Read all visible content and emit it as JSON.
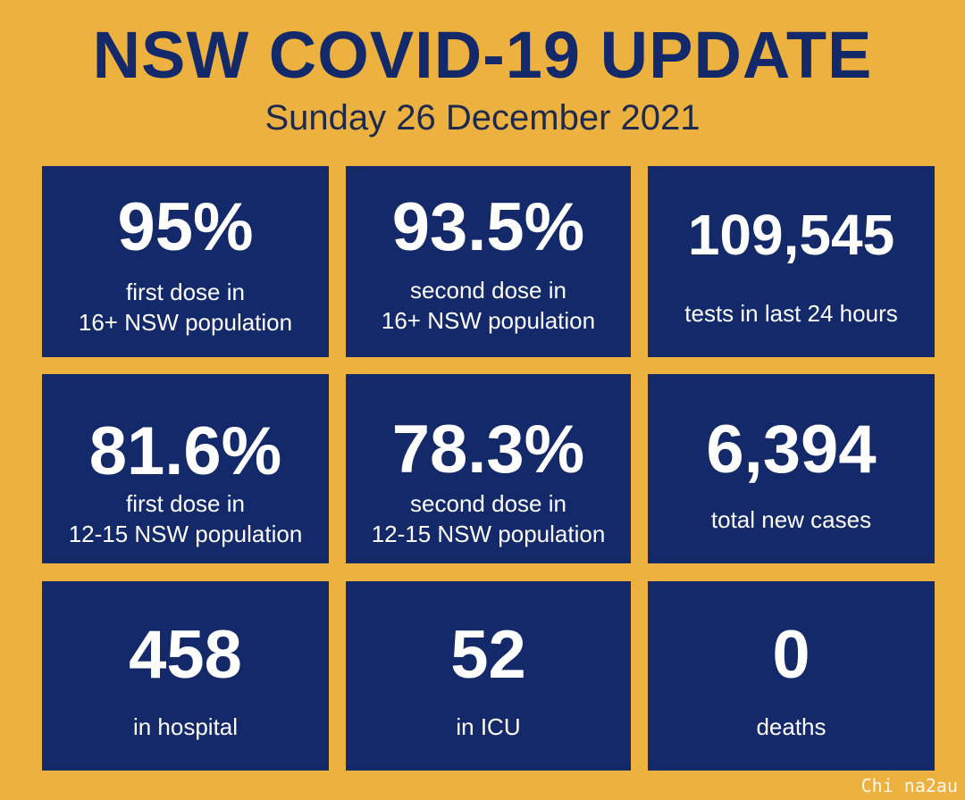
{
  "header": {
    "title": "NSW COVID-19 UPDATE",
    "date": "Sunday 26 December 2021"
  },
  "colors": {
    "background": "#EDB13F",
    "tile": "#13296A",
    "title_text": "#13296A",
    "tile_text": "#FFFFFF"
  },
  "tiles": [
    {
      "value": "95%",
      "label_line1": "first dose in",
      "label_line2": "16+ NSW population"
    },
    {
      "value": "93.5%",
      "label_line1": "second dose in",
      "label_line2": "16+ NSW population"
    },
    {
      "value": "109,545",
      "label_line1": "tests in last 24 hours",
      "label_line2": ""
    },
    {
      "value": "81.6%",
      "label_line1": "first dose in",
      "label_line2": "12-15 NSW population"
    },
    {
      "value": "78.3%",
      "label_line1": "second dose in",
      "label_line2": "12-15 NSW population"
    },
    {
      "value": "6,394",
      "label_line1": "total new cases",
      "label_line2": ""
    },
    {
      "value": "458",
      "label_line1": "in hospital",
      "label_line2": ""
    },
    {
      "value": "52",
      "label_line1": "in ICU",
      "label_line2": ""
    },
    {
      "value": "0",
      "label_line1": "deaths",
      "label_line2": ""
    }
  ],
  "watermark": "Chi na2au"
}
